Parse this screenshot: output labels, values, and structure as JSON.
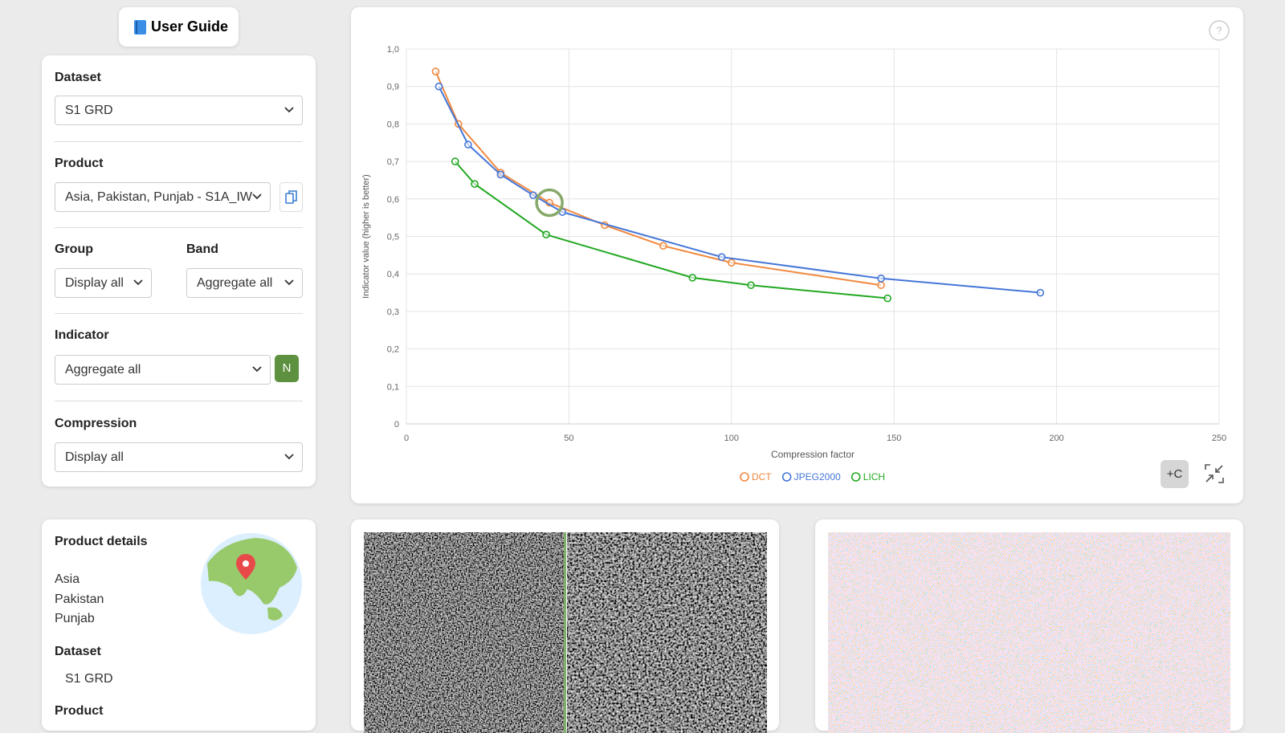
{
  "header": {
    "user_guide": "User Guide"
  },
  "filters": {
    "dataset": {
      "label": "Dataset",
      "value": "S1 GRD"
    },
    "product": {
      "label": "Product",
      "value": "Asia, Pakistan, Punjab - S1A_IW"
    },
    "group": {
      "label": "Group",
      "value": "Display all"
    },
    "band": {
      "label": "Band",
      "value": "Aggregate all"
    },
    "indicator": {
      "label": "Indicator",
      "value": "Aggregate all",
      "button": "N"
    },
    "compression": {
      "label": "Compression",
      "value": "Display all"
    }
  },
  "chart_controls": {
    "help": "?",
    "add_compare": "+C"
  },
  "chart_data": {
    "type": "line",
    "x_label": "Compression factor",
    "y_label": "Indicator value (higher is better)",
    "xlim": [
      0,
      250
    ],
    "xticks": [
      0,
      50,
      100,
      150,
      200,
      250
    ],
    "ylim": [
      0,
      1
    ],
    "yticks": [
      0,
      {
        "value": 0.1,
        "label": "0,1"
      },
      {
        "value": 0.2,
        "label": "0,2"
      },
      {
        "value": 0.3,
        "label": "0,3"
      },
      {
        "value": 0.4,
        "label": "0,4"
      },
      {
        "value": 0.5,
        "label": "0,5"
      },
      {
        "value": 0.6,
        "label": "0,6"
      },
      {
        "value": 0.7,
        "label": "0,7"
      },
      {
        "value": 0.8,
        "label": "0,8"
      },
      {
        "value": 0.9,
        "label": "0,9"
      },
      {
        "value": 1,
        "label": "1,0"
      }
    ],
    "grid": true,
    "legend": "bottom",
    "series": [
      {
        "name": "DCT",
        "color": "#f0883e",
        "x": [
          9,
          16,
          29,
          44,
          61,
          79,
          100,
          146
        ],
        "values": [
          0.94,
          0.8,
          0.67,
          0.59,
          0.53,
          0.475,
          0.43,
          0.37
        ]
      },
      {
        "name": "JPEG2000",
        "color": "#4576d8",
        "x": [
          10,
          19,
          29,
          39,
          48,
          97,
          146,
          195
        ],
        "values": [
          0.9,
          0.745,
          0.665,
          0.61,
          0.565,
          0.445,
          0.388,
          0.35
        ]
      },
      {
        "name": "LICH",
        "color": "#22a822",
        "x": [
          15,
          21,
          43,
          88,
          106,
          148
        ],
        "values": [
          0.7,
          0.64,
          0.505,
          0.39,
          0.37,
          0.335
        ]
      }
    ]
  },
  "product_details": {
    "title": "Product details",
    "location": [
      "Asia",
      "Pakistan",
      "Punjab"
    ],
    "dataset_label": "Dataset",
    "dataset_value": "S1 GRD",
    "product_label": "Product"
  }
}
